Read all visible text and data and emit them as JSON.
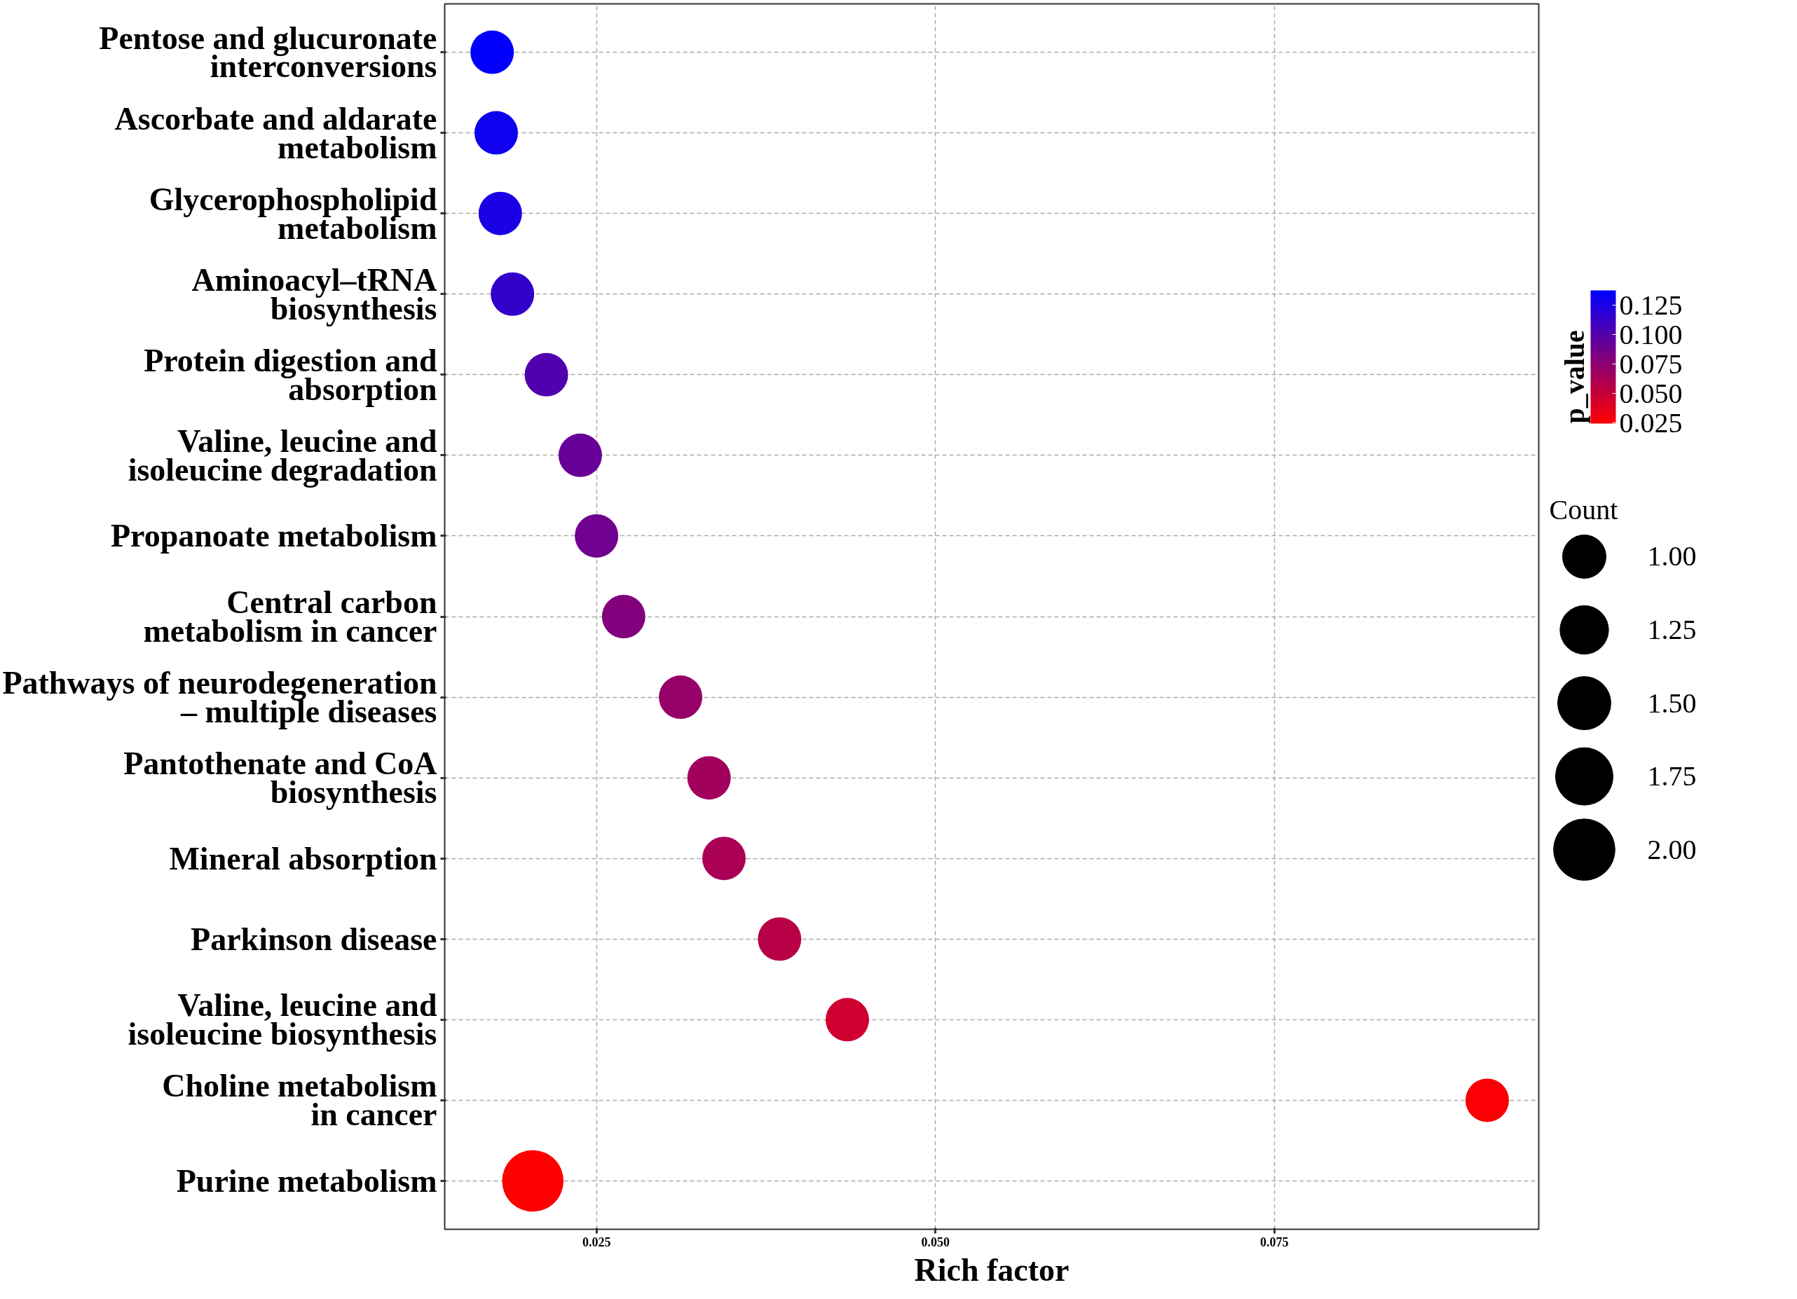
{
  "chart_data": {
    "type": "bubble",
    "categories": [
      "Pentose and glucuronate\ninterconversions",
      "Ascorbate and aldarate\nmetabolism",
      "Glycerophospholipid\nmetabolism",
      "Aminoacyl–tRNA\nbiosynthesis",
      "Protein digestion and\nabsorption",
      "Valine, leucine and\nisoleucine degradation",
      "Propanoate metabolism",
      "Central carbon\nmetabolism in cancer",
      "Pathways of neurodegeneration\n– multiple diseases",
      "Pantothenate and CoA\nbiosynthesis",
      "Mineral absorption",
      "Parkinson disease",
      "Valine, leucine and\nisoleucine biosynthesis",
      "Choline metabolism\nin cancer",
      "Purine metabolism"
    ],
    "orientation": "horizontal",
    "values": [
      0.0173,
      0.0176,
      0.0179,
      0.0188,
      0.0213,
      0.0238,
      0.025,
      0.027,
      0.0312,
      0.0333,
      0.0344,
      0.0385,
      0.0435,
      0.0907,
      0.0203
    ],
    "sizes": [
      1,
      1,
      1,
      1,
      1,
      1,
      1,
      1,
      1,
      1,
      1,
      1,
      1,
      1,
      2
    ],
    "cvalues": [
      0.137,
      0.131,
      0.126,
      0.115,
      0.102,
      0.092,
      0.088,
      0.08,
      0.071,
      0.066,
      0.063,
      0.056,
      0.046,
      0.027,
      0.025
    ],
    "size_legend": [
      {
        "value": 1,
        "label": "1.00"
      },
      {
        "value": 1.25,
        "label": "1.25"
      },
      {
        "value": 1.5,
        "label": "1.50"
      },
      {
        "value": 1.75,
        "label": "1.75"
      },
      {
        "value": 2,
        "label": "2.00"
      }
    ],
    "xlabel": "Rich factor",
    "clabel": "p_value",
    "legend_title": "Count",
    "clim": [
      0.0246,
      0.1377
    ],
    "cticks": [
      {
        "value": 0.025,
        "label": "0.025"
      },
      {
        "value": 0.05,
        "label": "0.050"
      },
      {
        "value": 0.075,
        "label": "0.075"
      },
      {
        "value": 0.1,
        "label": "0.100"
      },
      {
        "value": 0.125,
        "label": "0.125"
      }
    ],
    "xlim": [
      0.0138,
      0.0945
    ],
    "xticks": [
      {
        "value": 0.025,
        "label": "0.025"
      },
      {
        "value": 0.05,
        "label": "0.050"
      },
      {
        "value": 0.075,
        "label": "0.075"
      }
    ],
    "grid": true
  }
}
